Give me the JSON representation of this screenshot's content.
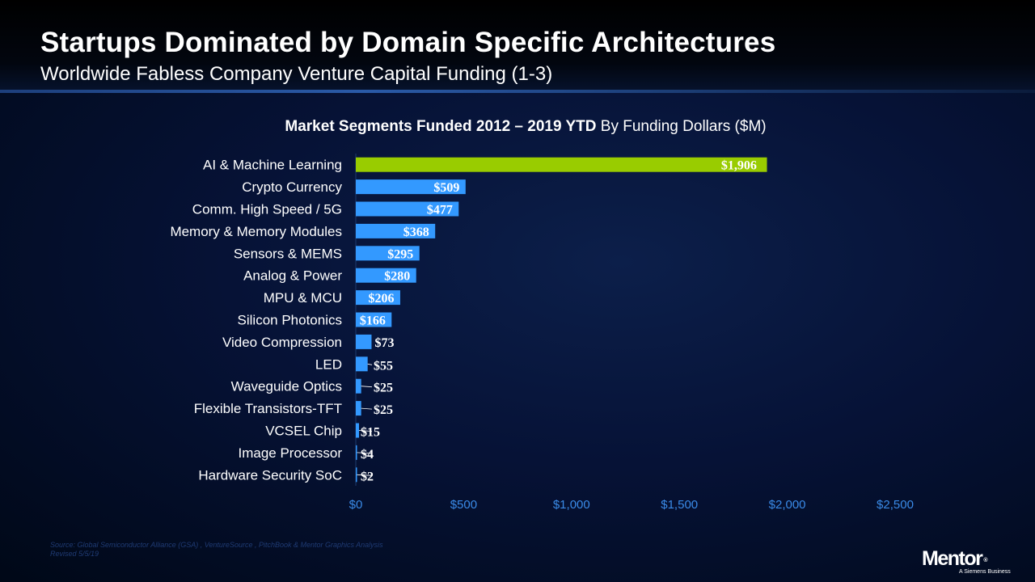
{
  "title": "Startups Dominated by Domain Specific Architectures",
  "subtitle": "Worldwide Fabless Company Venture Capital Funding (1-3)",
  "chart_title": {
    "bold": "Market Segments Funded  2012 – 2019 YTD",
    "normal": "By Funding Dollars ($M)"
  },
  "chart_data": {
    "type": "bar",
    "orientation": "horizontal",
    "categories": [
      "AI & Machine Learning",
      "Crypto Currency",
      "Comm. High Speed / 5G",
      "Memory & Memory Modules",
      "Sensors & MEMS",
      "Analog & Power",
      "MPU & MCU",
      "Silicon Photonics",
      "Video Compression",
      "LED",
      "Waveguide Optics",
      "Flexible Transistors-TFT",
      "VCSEL Chip",
      "Image Processor",
      "Hardware Security SoC"
    ],
    "values": [
      1906,
      509,
      477,
      368,
      295,
      280,
      206,
      166,
      73,
      55,
      25,
      25,
      15,
      4,
      2
    ],
    "data_labels": [
      "$1,906",
      "$509",
      "$477",
      "$368",
      "$295",
      "$280",
      "$206",
      "$166",
      "$73",
      "$55",
      "$25",
      "$25",
      "$15",
      "$4",
      "$2"
    ],
    "xlim": [
      0,
      2500
    ],
    "xticks": [
      0,
      500,
      1000,
      1500,
      2000,
      2500
    ],
    "xtick_labels": [
      "$0",
      "$500",
      "$1,000",
      "$1,500",
      "$2,000",
      "$2,500"
    ],
    "grid": false,
    "colors": {
      "highlight": "#99cc00",
      "bar": "#3399ff",
      "axis_text": "#3a8be8",
      "label_text": "#ffffff"
    }
  },
  "footer": {
    "source": "Source: Global Semiconductor Alliance (GSA) , VentureSource , PitchBook & Mentor Graphics Analysis",
    "revised": "Revised 5/5/19"
  },
  "logo": {
    "name": "Mentor",
    "mark": "®",
    "tagline": "A Siemens Business"
  }
}
